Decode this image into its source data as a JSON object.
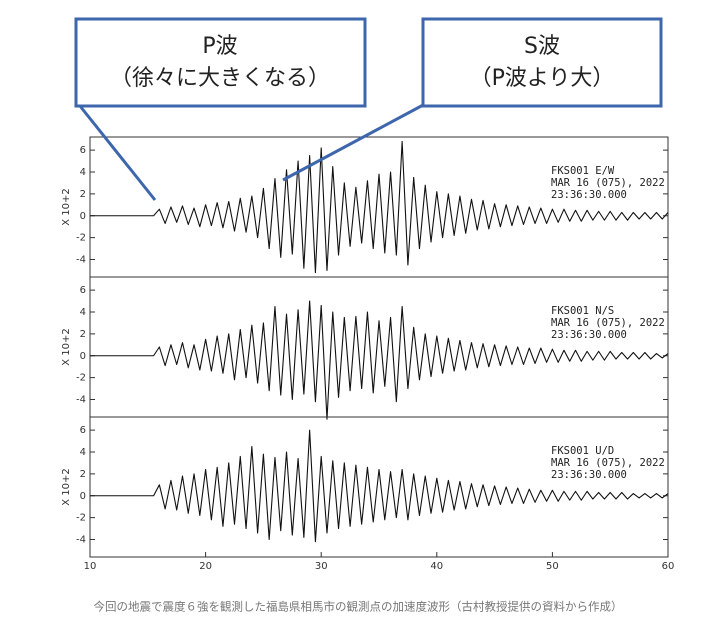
{
  "callouts": [
    {
      "title": "P波",
      "subtitle": "（徐々に大きくなる）"
    },
    {
      "title": "S波",
      "subtitle": "（P波より大）"
    }
  ],
  "caption": "今回の地震で震度６強を観測した福島県相馬市の観測点の加速度波形（古村教授提供の資料から作成）",
  "chart_data": [
    {
      "type": "line",
      "ylabel": "X 10+2",
      "annotation": [
        "FKS001  E/W",
        "MAR 16 (075), 2022",
        "23:36:30.000"
      ],
      "xlim": [
        10,
        60
      ],
      "ylim": [
        -5.6,
        7.2
      ],
      "yticks": [
        -4,
        -2,
        0,
        2,
        4,
        6
      ],
      "color": "#111111",
      "x": [
        10,
        10.5,
        11,
        11.5,
        12,
        12.5,
        13,
        13.5,
        14,
        14.5,
        15,
        15.5,
        16,
        16.5,
        17,
        17.5,
        18,
        18.5,
        19,
        19.5,
        20,
        20.5,
        21,
        21.5,
        22,
        22.5,
        23,
        23.5,
        24,
        24.5,
        25,
        25.5,
        26,
        26.5,
        27,
        27.5,
        28,
        28.5,
        29,
        29.5,
        30,
        30.5,
        31,
        31.5,
        32,
        32.5,
        33,
        33.5,
        34,
        34.5,
        35,
        35.5,
        36,
        36.5,
        37,
        37.5,
        38,
        38.5,
        39,
        39.5,
        40,
        40.5,
        41,
        41.5,
        42,
        42.5,
        43,
        43.5,
        44,
        44.5,
        45,
        45.5,
        46,
        46.5,
        47,
        47.5,
        48,
        48.5,
        49,
        49.5,
        50,
        50.5,
        51,
        51.5,
        52,
        52.5,
        53,
        53.5,
        54,
        54.5,
        55,
        55.5,
        56,
        56.5,
        57,
        57.5,
        58,
        58.5,
        59,
        59.5,
        60
      ],
      "values": [
        0,
        0,
        0,
        0,
        0,
        0,
        0,
        0,
        0,
        0,
        0,
        0,
        0.6,
        -0.7,
        0.8,
        -0.6,
        0.9,
        -0.8,
        0.7,
        -1.0,
        1.0,
        -0.9,
        1.2,
        -1.1,
        1.3,
        -1.4,
        1.6,
        -1.5,
        1.8,
        -2.0,
        2.5,
        -3.0,
        3.4,
        -3.8,
        4.2,
        -3.5,
        5.0,
        -4.8,
        5.5,
        -5.2,
        6.2,
        -5.0,
        4.5,
        -3.6,
        3.0,
        -2.8,
        2.6,
        -2.5,
        3.2,
        -3.0,
        3.8,
        -3.4,
        4.0,
        -3.6,
        6.8,
        -4.5,
        3.5,
        -3.0,
        2.8,
        -2.4,
        2.2,
        -2.0,
        2.0,
        -1.8,
        1.8,
        -1.6,
        1.5,
        -1.3,
        1.4,
        -1.2,
        1.1,
        -1.0,
        1.0,
        -0.9,
        0.9,
        -0.8,
        0.8,
        -0.7,
        0.7,
        -0.7,
        0.6,
        -0.6,
        0.6,
        -0.5,
        0.5,
        -0.5,
        0.5,
        -0.4,
        0.4,
        -0.4,
        0.4,
        -0.4,
        0.3,
        -0.4,
        0.3,
        -0.3,
        0.3,
        -0.3,
        0.3,
        -0.3,
        0.3
      ]
    },
    {
      "type": "line",
      "ylabel": "X 10+2",
      "annotation": [
        "FKS001  N/S",
        "MAR 16 (075), 2022",
        "23:36:30.000"
      ],
      "xlim": [
        10,
        60
      ],
      "ylim": [
        -5.6,
        7.2
      ],
      "yticks": [
        -4,
        -2,
        0,
        2,
        4,
        6
      ],
      "color": "#111111",
      "x": [
        10,
        10.5,
        11,
        11.5,
        12,
        12.5,
        13,
        13.5,
        14,
        14.5,
        15,
        15.5,
        16,
        16.5,
        17,
        17.5,
        18,
        18.5,
        19,
        19.5,
        20,
        20.5,
        21,
        21.5,
        22,
        22.5,
        23,
        23.5,
        24,
        24.5,
        25,
        25.5,
        26,
        26.5,
        27,
        27.5,
        28,
        28.5,
        29,
        29.5,
        30,
        30.5,
        31,
        31.5,
        32,
        32.5,
        33,
        33.5,
        34,
        34.5,
        35,
        35.5,
        36,
        36.5,
        37,
        37.5,
        38,
        38.5,
        39,
        39.5,
        40,
        40.5,
        41,
        41.5,
        42,
        42.5,
        43,
        43.5,
        44,
        44.5,
        45,
        45.5,
        46,
        46.5,
        47,
        47.5,
        48,
        48.5,
        49,
        49.5,
        50,
        50.5,
        51,
        51.5,
        52,
        52.5,
        53,
        53.5,
        54,
        54.5,
        55,
        55.5,
        56,
        56.5,
        57,
        57.5,
        58,
        58.5,
        59,
        59.5,
        60
      ],
      "values": [
        0,
        0,
        0,
        0,
        0,
        0,
        0,
        0,
        0,
        0,
        0,
        0,
        0.8,
        -0.9,
        1.0,
        -0.8,
        1.2,
        -1.1,
        1.0,
        -1.3,
        1.5,
        -1.4,
        1.8,
        -1.6,
        2.0,
        -2.2,
        2.4,
        -2.0,
        2.8,
        -2.5,
        3.0,
        -3.2,
        4.5,
        -3.6,
        3.8,
        -4.0,
        4.2,
        -3.5,
        5.0,
        -4.2,
        4.6,
        -5.8,
        4.0,
        -3.8,
        3.5,
        -3.2,
        3.6,
        -3.0,
        4.0,
        -3.4,
        3.2,
        -2.8,
        3.5,
        -4.2,
        4.5,
        -3.0,
        2.6,
        -2.2,
        2.0,
        -1.9,
        1.8,
        -1.6,
        1.6,
        -1.4,
        1.4,
        -1.3,
        1.2,
        -1.1,
        1.1,
        -1.0,
        1.0,
        -0.9,
        0.9,
        -0.8,
        0.8,
        -0.8,
        0.7,
        -0.7,
        0.7,
        -0.6,
        0.6,
        -0.6,
        0.5,
        -0.5,
        0.5,
        -0.5,
        0.4,
        -0.4,
        0.4,
        -0.4,
        0.4,
        -0.3,
        0.3,
        -0.3,
        0.3,
        -0.3,
        0.3,
        -0.3,
        0.2,
        -0.2,
        0.2
      ]
    },
    {
      "type": "line",
      "ylabel": "X 10+2",
      "annotation": [
        "FKS001  U/D",
        "MAR 16 (075), 2022",
        "23:36:30.000"
      ],
      "xlim": [
        10,
        60
      ],
      "ylim": [
        -5.6,
        7.2
      ],
      "yticks": [
        -4,
        -2,
        0,
        2,
        4,
        6
      ],
      "xticks": [
        10,
        20,
        30,
        40,
        50,
        60
      ],
      "color": "#111111",
      "x": [
        10,
        10.5,
        11,
        11.5,
        12,
        12.5,
        13,
        13.5,
        14,
        14.5,
        15,
        15.5,
        16,
        16.5,
        17,
        17.5,
        18,
        18.5,
        19,
        19.5,
        20,
        20.5,
        21,
        21.5,
        22,
        22.5,
        23,
        23.5,
        24,
        24.5,
        25,
        25.5,
        26,
        26.5,
        27,
        27.5,
        28,
        28.5,
        29,
        29.5,
        30,
        30.5,
        31,
        31.5,
        32,
        32.5,
        33,
        33.5,
        34,
        34.5,
        35,
        35.5,
        36,
        36.5,
        37,
        37.5,
        38,
        38.5,
        39,
        39.5,
        40,
        40.5,
        41,
        41.5,
        42,
        42.5,
        43,
        43.5,
        44,
        44.5,
        45,
        45.5,
        46,
        46.5,
        47,
        47.5,
        48,
        48.5,
        49,
        49.5,
        50,
        50.5,
        51,
        51.5,
        52,
        52.5,
        53,
        53.5,
        54,
        54.5,
        55,
        55.5,
        56,
        56.5,
        57,
        57.5,
        58,
        58.5,
        59,
        59.5,
        60
      ],
      "values": [
        0,
        0,
        0,
        0,
        0,
        0,
        0,
        0,
        0,
        0,
        0,
        0,
        1.0,
        -1.2,
        1.4,
        -1.3,
        1.8,
        -1.6,
        2.0,
        -1.8,
        2.4,
        -2.2,
        2.6,
        -2.8,
        3.0,
        -2.6,
        3.6,
        -3.0,
        4.5,
        -3.4,
        3.8,
        -4.0,
        3.5,
        -3.2,
        4.0,
        -3.6,
        3.4,
        -3.8,
        6.0,
        -4.2,
        3.6,
        -3.4,
        3.2,
        -3.0,
        3.0,
        -2.8,
        2.8,
        -2.6,
        2.6,
        -2.4,
        2.4,
        -2.2,
        2.2,
        -2.0,
        2.4,
        -2.2,
        2.0,
        -1.8,
        1.8,
        -1.6,
        1.6,
        -1.5,
        1.4,
        -1.3,
        1.3,
        -1.2,
        1.1,
        -1.0,
        1.0,
        -0.9,
        0.9,
        -0.8,
        0.8,
        -0.7,
        0.7,
        -0.7,
        0.6,
        -0.6,
        0.5,
        -0.5,
        0.5,
        -0.5,
        0.4,
        -0.4,
        0.4,
        -0.4,
        0.4,
        -0.3,
        0.3,
        -0.3,
        0.3,
        -0.3,
        0.3,
        -0.3,
        0.2,
        -0.2,
        0.2,
        -0.2,
        0.2,
        -0.2,
        0.2
      ]
    }
  ]
}
